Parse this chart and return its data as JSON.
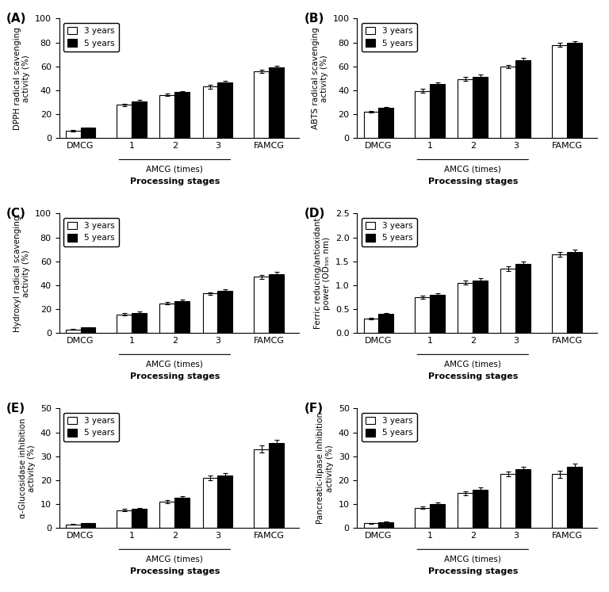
{
  "panels": [
    {
      "label": "(A)",
      "ylabel": "DPPH radical scavenging\nactivity (%)",
      "ylim": [
        0,
        100
      ],
      "yticks": [
        0,
        20,
        40,
        60,
        80,
        100
      ],
      "values_3yr": [
        6.0,
        28.0,
        36.0,
        43.0,
        56.0
      ],
      "values_5yr": [
        8.5,
        31.0,
        38.5,
        46.5,
        59.0
      ],
      "errors_3yr": [
        0.5,
        1.0,
        1.0,
        1.5,
        1.5
      ],
      "errors_5yr": [
        0.5,
        1.0,
        1.0,
        1.5,
        1.5
      ]
    },
    {
      "label": "(B)",
      "ylabel": "ABTS radical scavenging\nactivity (%)",
      "ylim": [
        0,
        100
      ],
      "yticks": [
        0,
        20,
        40,
        60,
        80,
        100
      ],
      "values_3yr": [
        22.0,
        39.5,
        49.5,
        60.0,
        78.0
      ],
      "values_5yr": [
        25.5,
        45.0,
        51.5,
        65.0,
        79.5
      ],
      "errors_3yr": [
        0.5,
        1.5,
        1.5,
        1.5,
        1.5
      ],
      "errors_5yr": [
        0.5,
        1.5,
        1.5,
        2.0,
        1.5
      ]
    },
    {
      "label": "(C)",
      "ylabel": "Hydroxyl radical scavenging\nactivity (%)",
      "ylim": [
        0,
        100
      ],
      "yticks": [
        0,
        20,
        40,
        60,
        80,
        100
      ],
      "values_3yr": [
        3.0,
        15.5,
        25.0,
        33.0,
        47.0
      ],
      "values_5yr": [
        4.5,
        17.0,
        27.0,
        35.5,
        49.0
      ],
      "errors_3yr": [
        0.3,
        1.0,
        1.0,
        1.0,
        1.5
      ],
      "errors_5yr": [
        0.3,
        1.0,
        1.0,
        1.0,
        2.0
      ]
    },
    {
      "label": "(D)",
      "ylabel": "Ferric reducing/antioxidant\npower (OD₅₉₅ nm)",
      "ylim": [
        0,
        2.5
      ],
      "yticks": [
        0.0,
        0.5,
        1.0,
        1.5,
        2.0,
        2.5
      ],
      "values_3yr": [
        0.3,
        0.75,
        1.05,
        1.35,
        1.65
      ],
      "values_5yr": [
        0.4,
        0.8,
        1.1,
        1.45,
        1.7
      ],
      "errors_3yr": [
        0.02,
        0.03,
        0.04,
        0.05,
        0.05
      ],
      "errors_5yr": [
        0.02,
        0.03,
        0.04,
        0.05,
        0.05
      ]
    },
    {
      "label": "(E)",
      "ylabel": "α-Glucosidase inhibition\nactivity (%)",
      "ylim": [
        0,
        50
      ],
      "yticks": [
        0,
        10,
        20,
        30,
        40,
        50
      ],
      "values_3yr": [
        1.5,
        7.5,
        11.0,
        21.0,
        33.0
      ],
      "values_5yr": [
        2.0,
        8.0,
        12.5,
        22.0,
        35.5
      ],
      "errors_3yr": [
        0.2,
        0.5,
        0.8,
        1.0,
        1.5
      ],
      "errors_5yr": [
        0.2,
        0.5,
        0.8,
        1.0,
        1.5
      ]
    },
    {
      "label": "(F)",
      "ylabel": "Pancreatic-lipase inhibition\nactivity (%)",
      "ylim": [
        0,
        50
      ],
      "yticks": [
        0,
        10,
        20,
        30,
        40,
        50
      ],
      "values_3yr": [
        2.0,
        8.5,
        14.5,
        22.5,
        22.5
      ],
      "values_5yr": [
        2.5,
        10.0,
        16.0,
        24.5,
        25.5
      ],
      "errors_3yr": [
        0.2,
        0.5,
        0.8,
        1.0,
        1.5
      ],
      "errors_5yr": [
        0.2,
        0.5,
        0.8,
        1.0,
        1.5
      ]
    }
  ],
  "x_labels": [
    "DMCG",
    "1",
    "2",
    "3",
    "FAMCG"
  ],
  "bar_width": 0.35,
  "color_3yr": "white",
  "color_5yr": "black",
  "edgecolor": "black",
  "legend_labels": [
    "3 years",
    "5 years"
  ],
  "xlabel_main": "Processing stages",
  "xlabel_sub": "AMCG (times)",
  "bar_positions": [
    0,
    1.2,
    2.2,
    3.2,
    4.4
  ]
}
